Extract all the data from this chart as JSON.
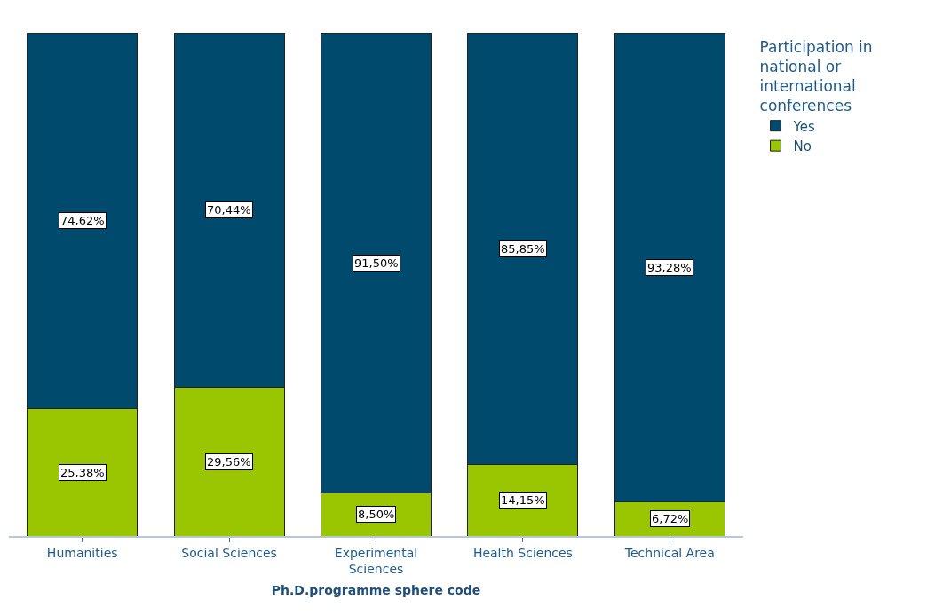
{
  "chart_data": {
    "type": "bar",
    "stacked": true,
    "xlabel": "Ph.D.programme sphere code",
    "legend_title": "Participation in national or international conferences",
    "legend": "top right",
    "categories": [
      "Humanities",
      "Social Sciences",
      "Experimental Sciences",
      "Health Sciences",
      "Technical Area"
    ],
    "series": [
      {
        "name": "No",
        "color": "#99c600",
        "values": [
          25.38,
          29.56,
          8.5,
          14.15,
          6.72
        ],
        "value_labels": [
          "25,38%",
          "29,56%",
          "8,50%",
          "14,15%",
          "6,72%"
        ]
      },
      {
        "name": "Yes",
        "color": "#004a6e",
        "values": [
          74.62,
          70.44,
          91.5,
          85.85,
          93.28
        ],
        "value_labels": [
          "74,62%",
          "70,44%",
          "91,50%",
          "85,85%",
          "93,28%"
        ]
      }
    ]
  }
}
